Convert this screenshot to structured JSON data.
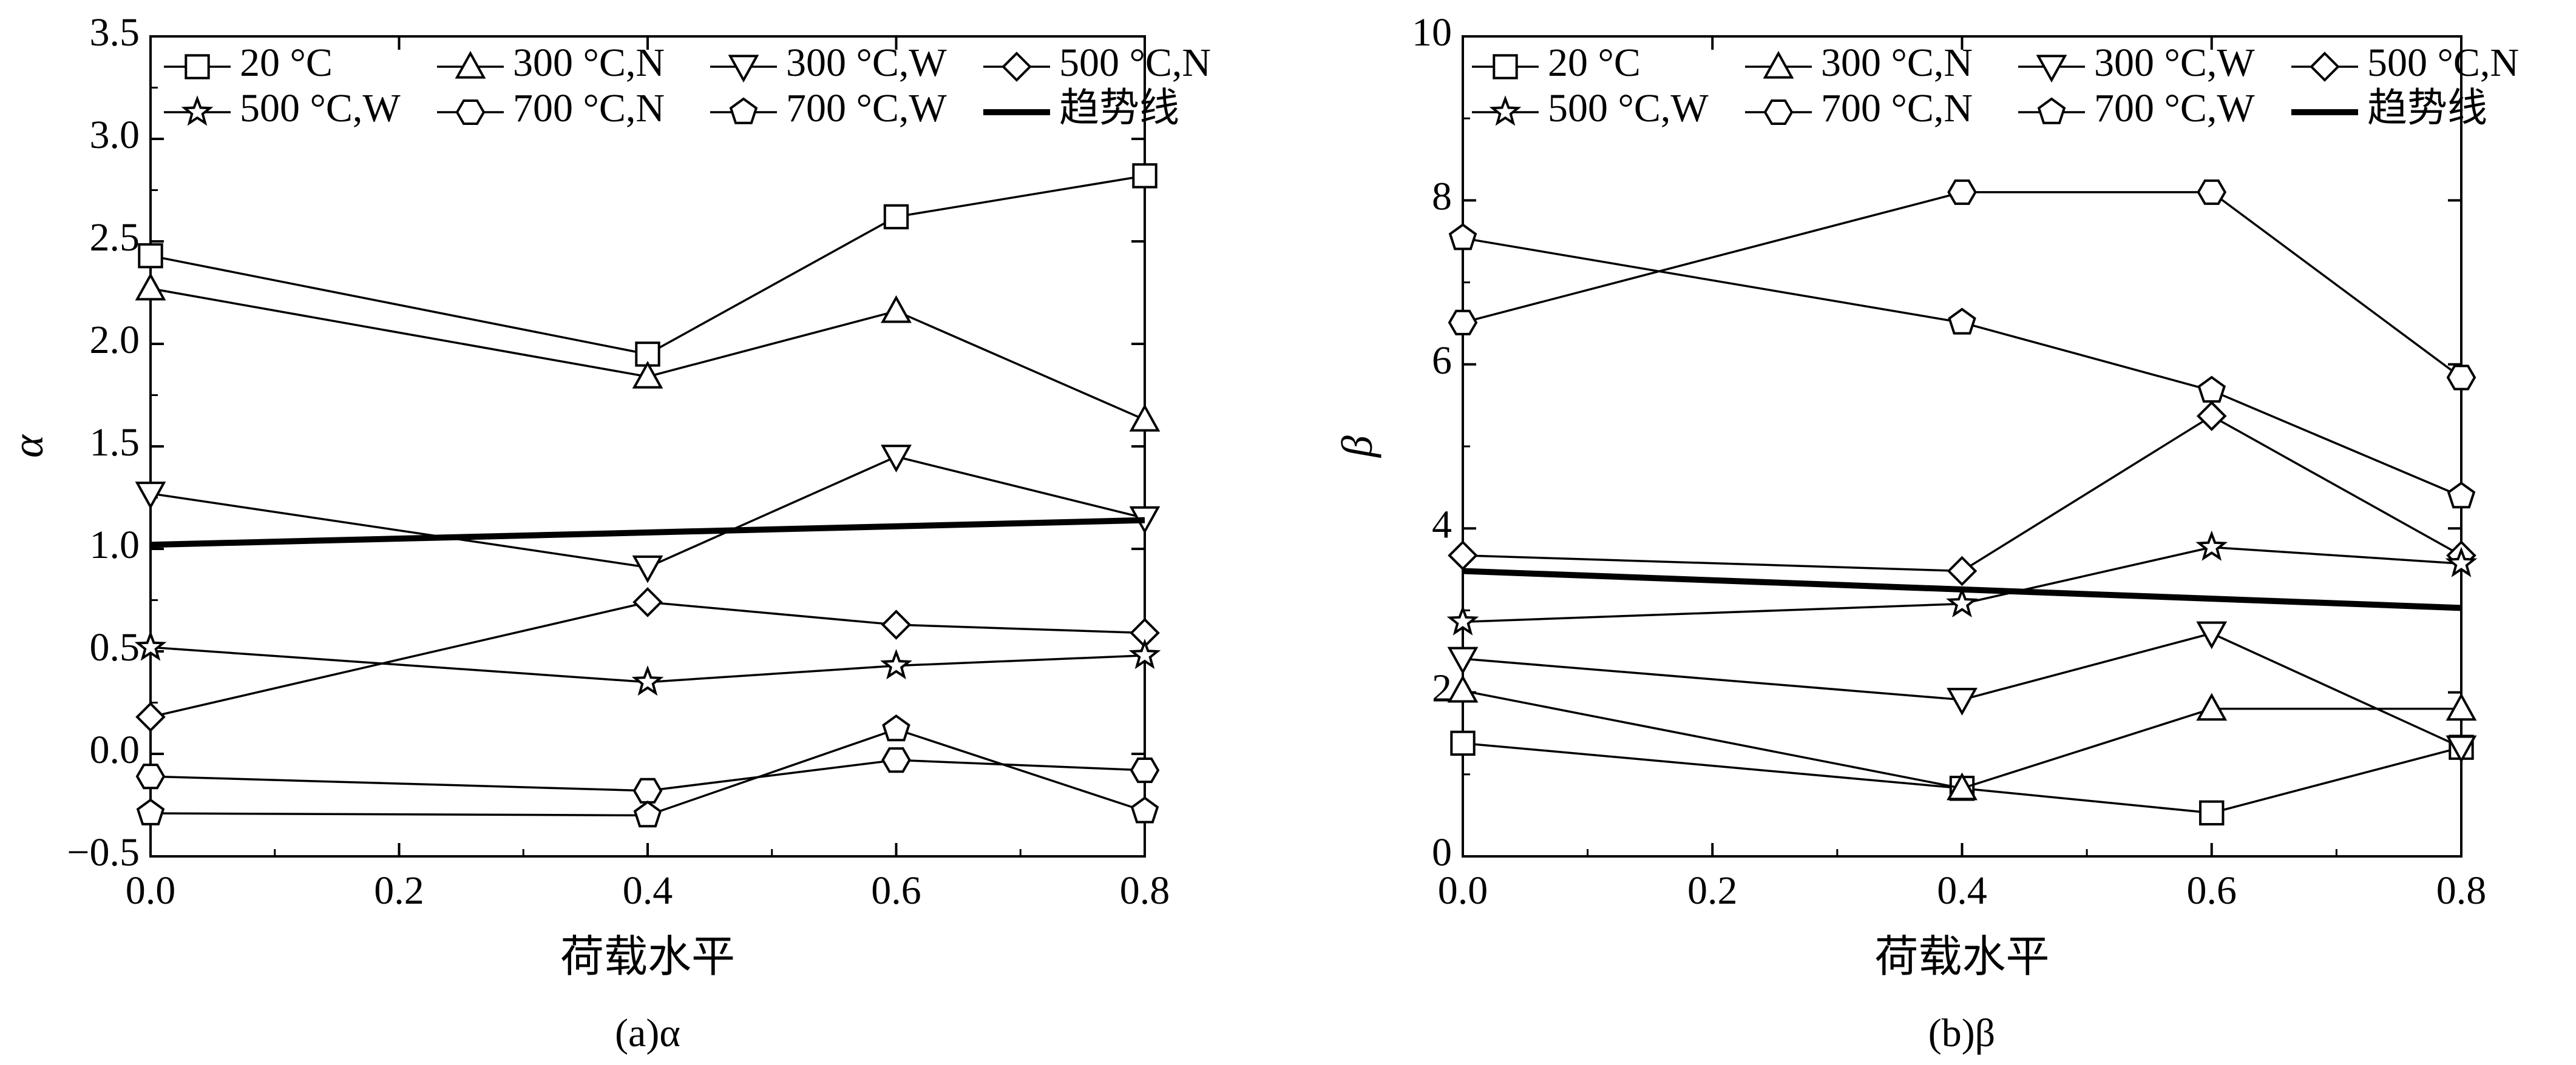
{
  "chart_data": [
    {
      "type": "line",
      "caption": "(a)α",
      "xlabel": "荷载水平",
      "ylabel": "α",
      "xlim": [
        0,
        0.8
      ],
      "ylim": [
        -0.5,
        3.5
      ],
      "xticks": [
        0.0,
        0.2,
        0.4,
        0.6,
        0.8
      ],
      "xtick_labels": [
        "0.0",
        "0.2",
        "0.4",
        "0.6",
        "0.8"
      ],
      "yticks": [
        -0.5,
        0.0,
        0.5,
        1.0,
        1.5,
        2.0,
        2.5,
        3.0,
        3.5
      ],
      "ytick_labels": [
        "−0.5",
        "0.0",
        "0.5",
        "1.0",
        "1.5",
        "2.0",
        "2.5",
        "3.0",
        "3.5"
      ],
      "x": [
        0.0,
        0.4,
        0.6,
        0.8
      ],
      "series": [
        {
          "name": "20 °C",
          "marker": "square",
          "values": [
            2.43,
            1.95,
            2.62,
            2.82
          ]
        },
        {
          "name": "300 °C,N",
          "marker": "triangle-up",
          "values": [
            2.27,
            1.84,
            2.16,
            1.63
          ]
        },
        {
          "name": "300 °C,W",
          "marker": "triangle-down",
          "values": [
            1.27,
            0.91,
            1.45,
            1.15
          ]
        },
        {
          "name": "500 °C,N",
          "marker": "diamond",
          "values": [
            0.18,
            0.74,
            0.63,
            0.59
          ]
        },
        {
          "name": "500 °C,W",
          "marker": "star",
          "values": [
            0.52,
            0.35,
            0.43,
            0.48
          ]
        },
        {
          "name": "700 °C,N",
          "marker": "hexagon",
          "values": [
            -0.11,
            -0.18,
            -0.03,
            -0.08
          ]
        },
        {
          "name": "700 °C,W",
          "marker": "pentagon",
          "values": [
            -0.29,
            -0.3,
            0.12,
            -0.28
          ]
        }
      ],
      "trend": {
        "name": "趋势线",
        "x": [
          0.0,
          0.8
        ],
        "values": [
          1.02,
          1.14
        ]
      },
      "legend": {
        "placement": "top",
        "trend_label": "趋势线"
      }
    },
    {
      "type": "line",
      "caption": "(b)β",
      "xlabel": "荷载水平",
      "ylabel": "β",
      "xlim": [
        0,
        0.8
      ],
      "ylim": [
        0,
        10
      ],
      "xticks": [
        0.0,
        0.2,
        0.4,
        0.6,
        0.8
      ],
      "xtick_labels": [
        "0.0",
        "0.2",
        "0.4",
        "0.6",
        "0.8"
      ],
      "yticks": [
        0,
        2,
        4,
        6,
        8,
        10
      ],
      "ytick_labels": [
        "0",
        "2",
        "4",
        "6",
        "8",
        "10"
      ],
      "x": [
        0.0,
        0.4,
        0.6,
        0.8
      ],
      "series": [
        {
          "name": "20 °C",
          "marker": "square",
          "values": [
            1.38,
            0.83,
            0.53,
            1.33
          ]
        },
        {
          "name": "300 °C,N",
          "marker": "triangle-up",
          "values": [
            2.02,
            0.83,
            1.8,
            1.8
          ]
        },
        {
          "name": "300 °C,W",
          "marker": "triangle-down",
          "values": [
            2.41,
            1.91,
            2.72,
            1.33
          ]
        },
        {
          "name": "500 °C,N",
          "marker": "diamond",
          "values": [
            3.67,
            3.48,
            5.37,
            3.67
          ]
        },
        {
          "name": "500 °C,W",
          "marker": "star",
          "values": [
            2.86,
            3.08,
            3.77,
            3.57
          ]
        },
        {
          "name": "700 °C,N",
          "marker": "hexagon",
          "values": [
            6.51,
            8.1,
            8.1,
            5.84
          ]
        },
        {
          "name": "700 °C,W",
          "marker": "pentagon",
          "values": [
            7.54,
            6.51,
            5.68,
            4.39
          ]
        }
      ],
      "trend": {
        "name": "趋势线",
        "x": [
          0.0,
          0.8
        ],
        "values": [
          3.48,
          3.03
        ]
      },
      "legend": {
        "placement": "top",
        "trend_label": "趋势线"
      }
    }
  ]
}
